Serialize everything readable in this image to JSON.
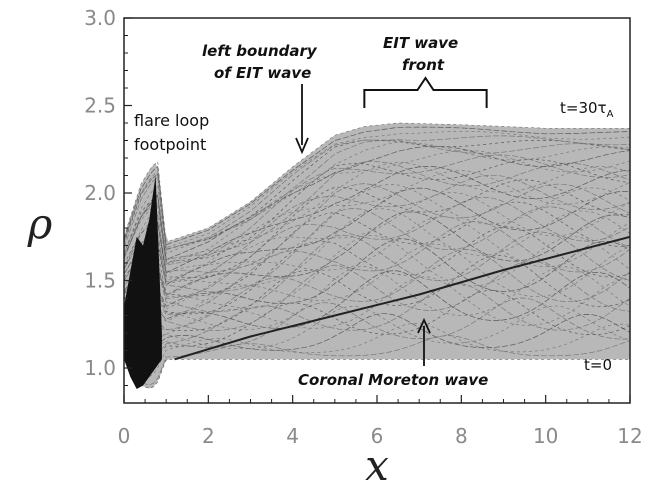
{
  "chart_data": {
    "type": "line",
    "xlabel": "x",
    "ylabel": "ρ",
    "xlim": [
      0,
      12
    ],
    "ylim": [
      0.8,
      3.0
    ],
    "xticks": [
      "0",
      "2",
      "4",
      "6",
      "8",
      "10",
      "12"
    ],
    "yticks": [
      "1.0",
      "1.5",
      "2.0",
      "2.5",
      "3.0"
    ],
    "annotations": {
      "flare_loop": [
        "flare loop",
        "footpoint"
      ],
      "left_boundary": [
        "left boundary",
        "of EIT wave"
      ],
      "eit_front": [
        "EIT wave",
        "front"
      ],
      "moreton": "Coronal Moreton wave",
      "t_end": "t=30τ",
      "t_end_sub": "A",
      "t_start": "t=0"
    },
    "series_envelope": {
      "x": [
        0.0,
        0.4,
        0.65,
        0.8,
        1.0,
        2.0,
        3.0,
        4.0,
        5.0,
        5.7,
        6.5,
        8.0,
        10.0,
        12.0
      ],
      "upper": [
        1.75,
        2.05,
        2.15,
        2.18,
        1.72,
        1.8,
        1.95,
        2.15,
        2.33,
        2.38,
        2.4,
        2.39,
        2.37,
        2.37
      ],
      "lower": [
        1.05,
        0.9,
        0.88,
        0.92,
        1.05,
        1.05,
        1.05,
        1.05,
        1.05,
        1.05,
        1.05,
        1.05,
        1.05,
        1.05
      ]
    },
    "moreton_front": {
      "x": [
        1.2,
        3.0,
        5.0,
        7.0,
        9.0,
        12.0
      ],
      "y": [
        1.05,
        1.18,
        1.3,
        1.42,
        1.56,
        1.75
      ]
    },
    "eit_front_range": [
      5.7,
      8.6
    ]
  }
}
